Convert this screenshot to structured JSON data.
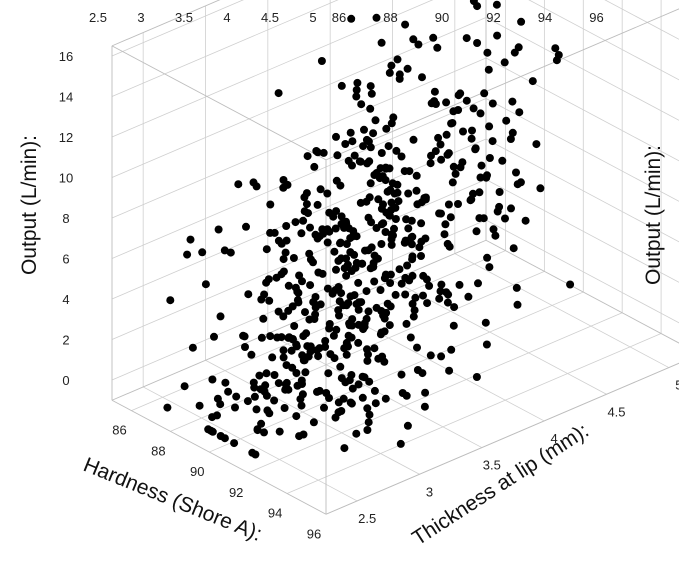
{
  "chart_data": {
    "type": "scatter",
    "projection": "3d",
    "grid": true,
    "marker_color": "#000000",
    "axes": {
      "hardness": {
        "label": "Hardness (Shore A):",
        "range": [
          85,
          96
        ],
        "ticks": [
          "86",
          "88",
          "90",
          "92",
          "94",
          "96"
        ],
        "top_ticks": [
          "86",
          "88",
          "90",
          "92",
          "94",
          "96"
        ]
      },
      "thickness": {
        "label": "Thickness at lip (mm):",
        "range": [
          2.25,
          5.25
        ],
        "ticks": [
          "2.5",
          "3",
          "3.5",
          "4",
          "4.5",
          "5"
        ],
        "top_ticks": [
          "2.5",
          "3",
          "3.5",
          "4",
          "4.5",
          "5"
        ]
      },
      "output": {
        "label_left": "Output (L/min):",
        "label_right": "Output (L/min):",
        "range": [
          -1,
          16.5
        ],
        "ticks": [
          "0",
          "2",
          "4",
          "6",
          "8",
          "10",
          "12",
          "14",
          "16"
        ]
      }
    },
    "generation": {
      "description": "dense cloud of about 600 observations",
      "count": 600
    }
  }
}
